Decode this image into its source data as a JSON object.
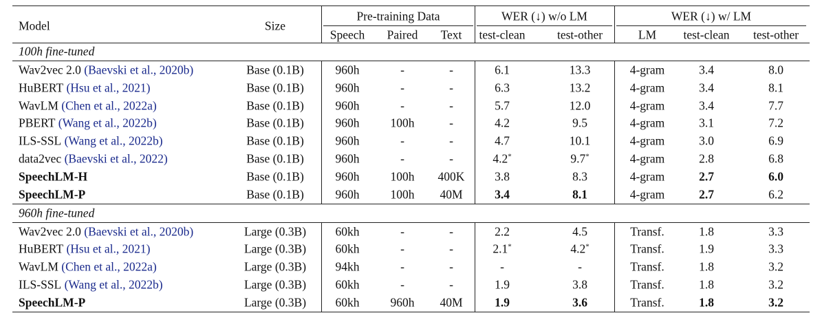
{
  "header": {
    "model": "Model",
    "size": "Size",
    "groups": [
      "Pre-training Data",
      "WER (↓) w/o LM",
      "WER (↓) w/ LM"
    ],
    "subheaders": [
      "Speech",
      "Paired",
      "Text",
      "test-clean",
      "test-other",
      "LM",
      "test-clean",
      "test-other"
    ]
  },
  "sections": [
    {
      "title": "100h fine-tuned",
      "rows": [
        {
          "model": "Wav2vec 2.0",
          "citation": "(Baevski et al., 2020b)",
          "cells": [
            "Base (0.1B)",
            "960h",
            "-",
            "-",
            "6.1",
            "13.3",
            "4-gram",
            "3.4",
            "8.0"
          ]
        },
        {
          "model": "HuBERT",
          "citation": "(Hsu et al., 2021)",
          "cells": [
            "Base (0.1B)",
            "960h",
            "-",
            "-",
            "6.3",
            "13.2",
            "4-gram",
            "3.4",
            "8.1"
          ]
        },
        {
          "model": "WavLM",
          "citation": "(Chen et al., 2022a)",
          "cells": [
            "Base (0.1B)",
            "960h",
            "-",
            "-",
            "5.7",
            "12.0",
            "4-gram",
            "3.4",
            "7.7"
          ]
        },
        {
          "model": "PBERT",
          "citation": "(Wang et al., 2022b)",
          "cells": [
            "Base (0.1B)",
            "960h",
            "100h",
            "-",
            "4.2",
            "9.5",
            "4-gram",
            "3.1",
            "7.2"
          ]
        },
        {
          "model": "ILS-SSL",
          "citation": "(Wang et al., 2022b)",
          "cells": [
            "Base (0.1B)",
            "960h",
            "-",
            "-",
            "4.7",
            "10.1",
            "4-gram",
            "3.0",
            "6.9"
          ]
        },
        {
          "model": "data2vec",
          "citation": "(Baevski et al., 2022)",
          "cells": [
            "Base (0.1B)",
            "960h",
            "-",
            "-",
            {
              "text": "4.2",
              "sup": "*"
            },
            {
              "text": "9.7",
              "sup": "*"
            },
            "4-gram",
            "2.8",
            "6.8"
          ]
        },
        {
          "model": "SpeechLM-H",
          "strong": true,
          "cells": [
            "Base (0.1B)",
            "960h",
            "100h",
            "400K",
            "3.8",
            "8.3",
            "4-gram",
            "2.7",
            "6.0"
          ],
          "bold": [
            7,
            8
          ]
        },
        {
          "model": "SpeechLM-P",
          "strong": true,
          "cells": [
            "Base (0.1B)",
            "960h",
            "100h",
            "40M",
            "3.4",
            "8.1",
            "4-gram",
            "2.7",
            "6.2"
          ],
          "bold": [
            4,
            5,
            7
          ]
        }
      ]
    },
    {
      "title": "960h fine-tuned",
      "rows": [
        {
          "model": "Wav2vec 2.0",
          "citation": "(Baevski et al., 2020b)",
          "cells": [
            "Large (0.3B)",
            "60kh",
            "-",
            "-",
            "2.2",
            "4.5",
            "Transf.",
            "1.8",
            "3.3"
          ]
        },
        {
          "model": "HuBERT",
          "citation": "(Hsu et al., 2021)",
          "cells": [
            "Large (0.3B)",
            "60kh",
            "-",
            "-",
            {
              "text": "2.1",
              "sup": "*"
            },
            {
              "text": "4.2",
              "sup": "*"
            },
            "Transf.",
            "1.9",
            "3.3"
          ]
        },
        {
          "model": "WavLM",
          "citation": "(Chen et al., 2022a)",
          "cells": [
            "Large (0.3B)",
            "94kh",
            "-",
            "-",
            "-",
            "-",
            "Transf.",
            "1.8",
            "3.2"
          ]
        },
        {
          "model": "ILS-SSL",
          "citation": "(Wang et al., 2022b)",
          "cells": [
            "Large (0.3B)",
            "60kh",
            "-",
            "-",
            "1.9",
            "3.8",
            "Transf.",
            "1.8",
            "3.2"
          ]
        },
        {
          "model": "SpeechLM-P",
          "strong": true,
          "cells": [
            "Large (0.3B)",
            "60kh",
            "960h",
            "40M",
            "1.9",
            "3.6",
            "Transf.",
            "1.8",
            "3.2"
          ],
          "bold": [
            4,
            5,
            7,
            8
          ]
        }
      ]
    }
  ]
}
